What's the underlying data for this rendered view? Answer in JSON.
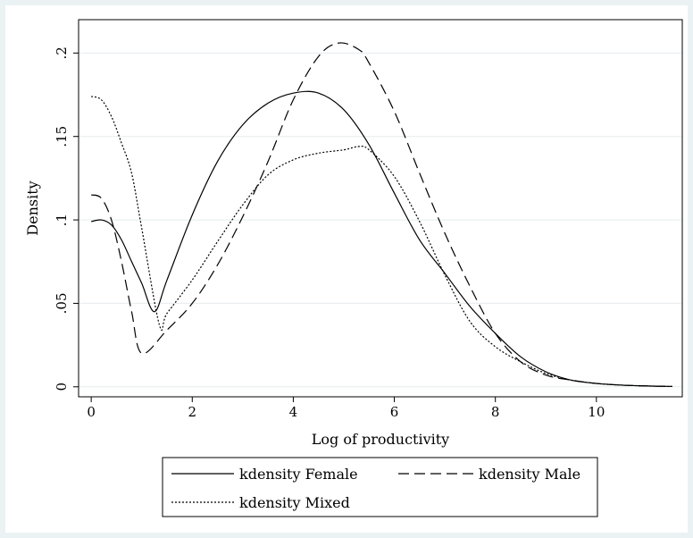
{
  "chart_data": {
    "type": "line",
    "xlabel": "Log of productivity",
    "ylabel": "Density",
    "xlim": [
      -0.25,
      11.7
    ],
    "ylim": [
      -0.006,
      0.22
    ],
    "xticks": [
      0,
      2,
      4,
      6,
      8,
      10
    ],
    "xtick_labels": [
      "0",
      "2",
      "4",
      "6",
      "8",
      "10"
    ],
    "yticks": [
      0,
      0.05,
      0.1,
      0.15,
      0.2
    ],
    "ytick_labels": [
      "0",
      ".05",
      ".1",
      ".15",
      ".2"
    ],
    "grid": "horizontal",
    "legend_position": "bottom",
    "series": [
      {
        "name": "kdensity Female",
        "style": "solid",
        "x": [
          0,
          0.2,
          0.4,
          0.6,
          0.8,
          1.0,
          1.25,
          1.5,
          2.0,
          2.5,
          3.0,
          3.5,
          4.0,
          4.5,
          5.0,
          5.5,
          6.0,
          6.5,
          7.0,
          7.5,
          8.0,
          8.5,
          9.0,
          9.5,
          10.0,
          10.5,
          11.0,
          11.5
        ],
        "y": [
          0.099,
          0.1,
          0.097,
          0.088,
          0.075,
          0.062,
          0.045,
          0.064,
          0.103,
          0.135,
          0.157,
          0.17,
          0.176,
          0.176,
          0.166,
          0.145,
          0.116,
          0.088,
          0.068,
          0.048,
          0.032,
          0.018,
          0.009,
          0.004,
          0.002,
          0.001,
          0.0005,
          0.0002
        ]
      },
      {
        "name": "kdensity Male",
        "style": "dashed",
        "x": [
          0,
          0.2,
          0.4,
          0.6,
          0.8,
          1.0,
          1.5,
          2.0,
          2.5,
          3.0,
          3.5,
          4.0,
          4.5,
          4.9,
          5.3,
          5.5,
          6.0,
          6.5,
          7.0,
          7.5,
          8.0,
          8.5,
          9.0,
          9.5,
          10.0,
          10.5,
          11.0,
          11.5
        ],
        "y": [
          0.115,
          0.113,
          0.1,
          0.075,
          0.045,
          0.02,
          0.034,
          0.05,
          0.073,
          0.102,
          0.135,
          0.172,
          0.198,
          0.206,
          0.202,
          0.194,
          0.165,
          0.128,
          0.092,
          0.06,
          0.032,
          0.015,
          0.007,
          0.004,
          0.002,
          0.001,
          0.0005,
          0.0002
        ]
      },
      {
        "name": "kdensity Mixed",
        "style": "dotted",
        "x": [
          0,
          0.2,
          0.4,
          0.6,
          0.8,
          1.0,
          1.35,
          1.5,
          2.0,
          2.5,
          3.0,
          3.5,
          4.0,
          4.5,
          5.0,
          5.3,
          5.5,
          6.0,
          6.5,
          7.0,
          7.5,
          8.0,
          8.5,
          9.0,
          9.5,
          10.0,
          10.5,
          11.0,
          11.5
        ],
        "y": [
          0.174,
          0.172,
          0.162,
          0.146,
          0.128,
          0.095,
          0.037,
          0.044,
          0.064,
          0.087,
          0.109,
          0.127,
          0.136,
          0.14,
          0.142,
          0.144,
          0.142,
          0.126,
          0.099,
          0.067,
          0.039,
          0.024,
          0.015,
          0.008,
          0.004,
          0.002,
          0.001,
          0.0005,
          0.0002
        ]
      }
    ]
  }
}
